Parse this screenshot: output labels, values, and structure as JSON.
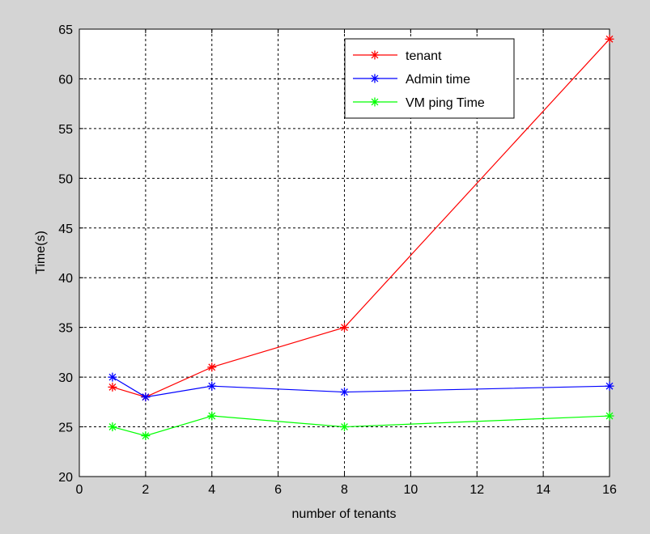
{
  "chart_data": {
    "type": "line",
    "title": "",
    "xlabel": "number of tenants",
    "ylabel": "Time(s)",
    "xlim": [
      0,
      16
    ],
    "ylim": [
      20,
      65
    ],
    "xticks": [
      0,
      2,
      4,
      6,
      8,
      10,
      12,
      14,
      16
    ],
    "yticks": [
      20,
      25,
      30,
      35,
      40,
      45,
      50,
      55,
      60,
      65
    ],
    "grid": true,
    "legend_position": "top-right",
    "x": [
      1,
      2,
      4,
      8,
      16
    ],
    "series": [
      {
        "name": "tenant",
        "color": "#ff0000",
        "marker": "asterisk",
        "values": [
          29,
          28,
          31,
          35,
          64
        ]
      },
      {
        "name": "Admin time",
        "color": "#0000ff",
        "marker": "asterisk",
        "values": [
          30,
          28,
          29.1,
          28.5,
          29.1
        ]
      },
      {
        "name": "VM ping Time",
        "color": "#00ff00",
        "marker": "asterisk",
        "values": [
          25,
          24.1,
          26.1,
          25,
          26.1
        ]
      }
    ]
  }
}
